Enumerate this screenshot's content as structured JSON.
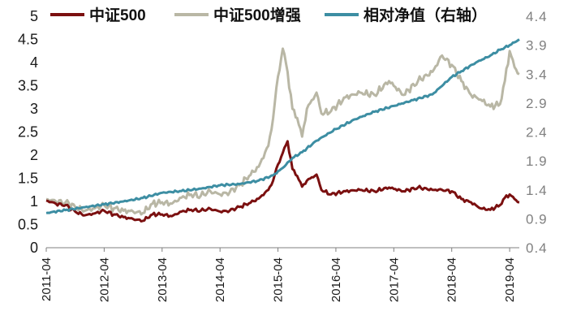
{
  "chart_data": {
    "type": "line",
    "legend": {
      "position": "top",
      "entries": [
        "中证500",
        "中证500增强",
        "相对净值（右轴）"
      ]
    },
    "left_axis": {
      "ylim": [
        0,
        5
      ],
      "ticks": [
        "0",
        "0.5",
        "1",
        "1.5",
        "2",
        "2.5",
        "3",
        "3.5",
        "4",
        "4.5",
        "5"
      ]
    },
    "right_axis": {
      "ylim": [
        0.4,
        4.4
      ],
      "ticks": [
        "0.4",
        "0.9",
        "1.4",
        "1.9",
        "2.4",
        "2.9",
        "3.4",
        "3.9",
        "4.4"
      ]
    },
    "x_axis": {
      "range": [
        "2011-04",
        "2019-06"
      ],
      "ticks": [
        "2011-04",
        "2012-04",
        "2013-04",
        "2014-04",
        "2015-04",
        "2016-04",
        "2017-04",
        "2018-04",
        "2019-04"
      ]
    },
    "grid": false,
    "series": [
      {
        "name": "中证500",
        "axis": "left",
        "color": "#7b1010",
        "points": [
          [
            "2011-04",
            1.02
          ],
          [
            "2011-06",
            0.95
          ],
          [
            "2011-08",
            0.92
          ],
          [
            "2011-10",
            0.78
          ],
          [
            "2011-12",
            0.7
          ],
          [
            "2012-02",
            0.74
          ],
          [
            "2012-04",
            0.8
          ],
          [
            "2012-06",
            0.72
          ],
          [
            "2012-08",
            0.66
          ],
          [
            "2012-10",
            0.62
          ],
          [
            "2012-12",
            0.58
          ],
          [
            "2013-02",
            0.72
          ],
          [
            "2013-04",
            0.72
          ],
          [
            "2013-06",
            0.68
          ],
          [
            "2013-08",
            0.78
          ],
          [
            "2013-10",
            0.82
          ],
          [
            "2013-12",
            0.8
          ],
          [
            "2014-02",
            0.84
          ],
          [
            "2014-04",
            0.78
          ],
          [
            "2014-06",
            0.8
          ],
          [
            "2014-08",
            0.88
          ],
          [
            "2014-10",
            0.96
          ],
          [
            "2014-12",
            1.06
          ],
          [
            "2015-02",
            1.25
          ],
          [
            "2015-03",
            1.45
          ],
          [
            "2015-04",
            1.8
          ],
          [
            "2015-05",
            2.05
          ],
          [
            "2015-06",
            2.3
          ],
          [
            "2015-07",
            1.7
          ],
          [
            "2015-08",
            1.55
          ],
          [
            "2015-09",
            1.32
          ],
          [
            "2015-10",
            1.45
          ],
          [
            "2015-12",
            1.58
          ],
          [
            "2016-01",
            1.25
          ],
          [
            "2016-03",
            1.15
          ],
          [
            "2016-06",
            1.22
          ],
          [
            "2016-09",
            1.25
          ],
          [
            "2016-12",
            1.22
          ],
          [
            "2017-03",
            1.3
          ],
          [
            "2017-06",
            1.22
          ],
          [
            "2017-09",
            1.3
          ],
          [
            "2017-12",
            1.25
          ],
          [
            "2018-02",
            1.25
          ],
          [
            "2018-04",
            1.22
          ],
          [
            "2018-06",
            1.05
          ],
          [
            "2018-08",
            0.98
          ],
          [
            "2018-10",
            0.85
          ],
          [
            "2018-12",
            0.82
          ],
          [
            "2019-02",
            0.92
          ],
          [
            "2019-03",
            1.08
          ],
          [
            "2019-04",
            1.15
          ],
          [
            "2019-05",
            1.05
          ],
          [
            "2019-06",
            0.98
          ]
        ]
      },
      {
        "name": "中证500增强",
        "axis": "left",
        "color": "#b9b7a5",
        "points": [
          [
            "2011-04",
            1.05
          ],
          [
            "2011-06",
            1.0
          ],
          [
            "2011-08",
            0.98
          ],
          [
            "2011-10",
            0.88
          ],
          [
            "2011-12",
            0.8
          ],
          [
            "2012-02",
            0.85
          ],
          [
            "2012-04",
            0.92
          ],
          [
            "2012-06",
            0.85
          ],
          [
            "2012-08",
            0.8
          ],
          [
            "2012-10",
            0.78
          ],
          [
            "2012-12",
            0.75
          ],
          [
            "2013-02",
            0.95
          ],
          [
            "2013-04",
            0.98
          ],
          [
            "2013-06",
            0.95
          ],
          [
            "2013-08",
            1.08
          ],
          [
            "2013-10",
            1.15
          ],
          [
            "2013-12",
            1.12
          ],
          [
            "2014-02",
            1.22
          ],
          [
            "2014-04",
            1.15
          ],
          [
            "2014-06",
            1.2
          ],
          [
            "2014-08",
            1.35
          ],
          [
            "2014-10",
            1.55
          ],
          [
            "2014-12",
            1.75
          ],
          [
            "2015-02",
            2.2
          ],
          [
            "2015-03",
            2.8
          ],
          [
            "2015-04",
            3.7
          ],
          [
            "2015-05",
            4.3
          ],
          [
            "2015-06",
            3.8
          ],
          [
            "2015-07",
            3.0
          ],
          [
            "2015-08",
            2.8
          ],
          [
            "2015-09",
            2.4
          ],
          [
            "2015-10",
            3.0
          ],
          [
            "2015-12",
            3.35
          ],
          [
            "2016-01",
            2.9
          ],
          [
            "2016-03",
            2.95
          ],
          [
            "2016-06",
            3.25
          ],
          [
            "2016-09",
            3.35
          ],
          [
            "2016-12",
            3.3
          ],
          [
            "2017-03",
            3.6
          ],
          [
            "2017-06",
            3.3
          ],
          [
            "2017-09",
            3.6
          ],
          [
            "2017-12",
            3.8
          ],
          [
            "2018-02",
            4.15
          ],
          [
            "2018-04",
            3.95
          ],
          [
            "2018-06",
            3.6
          ],
          [
            "2018-08",
            3.3
          ],
          [
            "2018-10",
            3.2
          ],
          [
            "2018-12",
            3.05
          ],
          [
            "2019-02",
            3.1
          ],
          [
            "2019-03",
            3.6
          ],
          [
            "2019-04",
            4.25
          ],
          [
            "2019-05",
            3.9
          ],
          [
            "2019-06",
            3.75
          ]
        ]
      },
      {
        "name": "相对净值（右轴）",
        "axis": "right",
        "color": "#3d8ea3",
        "points": [
          [
            "2011-04",
            1.0
          ],
          [
            "2011-08",
            1.05
          ],
          [
            "2011-12",
            1.1
          ],
          [
            "2012-04",
            1.15
          ],
          [
            "2012-08",
            1.2
          ],
          [
            "2012-12",
            1.26
          ],
          [
            "2013-04",
            1.35
          ],
          [
            "2013-08",
            1.38
          ],
          [
            "2013-12",
            1.42
          ],
          [
            "2014-04",
            1.48
          ],
          [
            "2014-08",
            1.5
          ],
          [
            "2014-12",
            1.56
          ],
          [
            "2015-03",
            1.65
          ],
          [
            "2015-05",
            1.78
          ],
          [
            "2015-07",
            1.95
          ],
          [
            "2015-09",
            2.05
          ],
          [
            "2015-12",
            2.25
          ],
          [
            "2016-04",
            2.45
          ],
          [
            "2016-08",
            2.62
          ],
          [
            "2016-12",
            2.75
          ],
          [
            "2017-04",
            2.85
          ],
          [
            "2017-08",
            2.95
          ],
          [
            "2017-12",
            3.05
          ],
          [
            "2018-04",
            3.35
          ],
          [
            "2018-06",
            3.45
          ],
          [
            "2018-09",
            3.6
          ],
          [
            "2018-12",
            3.72
          ],
          [
            "2019-02",
            3.82
          ],
          [
            "2019-04",
            3.9
          ],
          [
            "2019-06",
            4.0
          ]
        ]
      }
    ]
  }
}
